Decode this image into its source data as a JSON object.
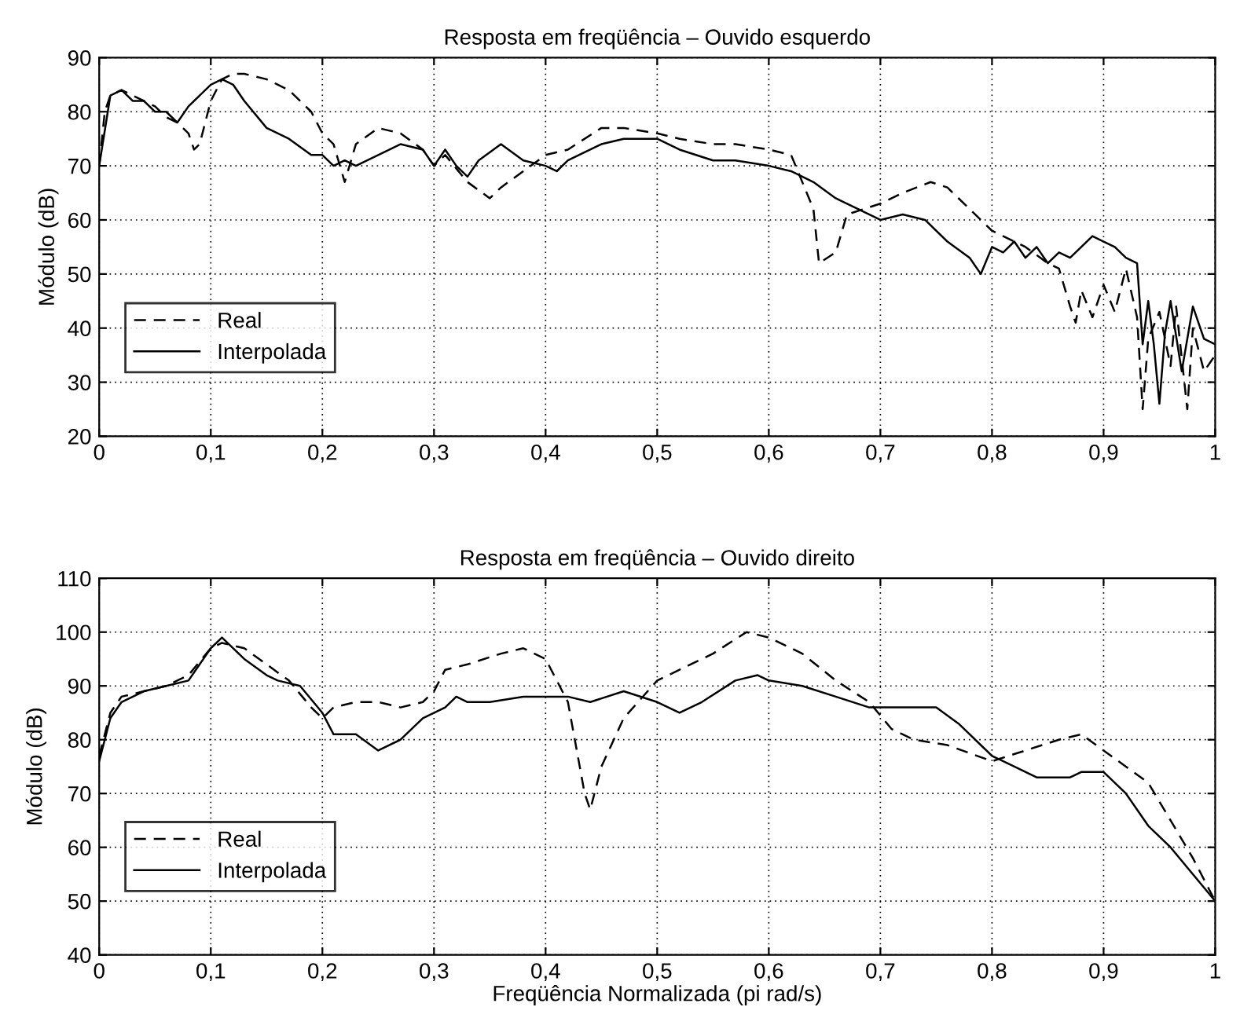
{
  "chart_data": [
    {
      "type": "line",
      "title": "Resposta em freqüência – Ouvido esquerdo",
      "ylabel": "Módulo (dB)",
      "xlim": [
        0,
        1
      ],
      "xticks": [
        0,
        {
          "value": 0.1,
          "label": "0,1"
        },
        {
          "value": 0.2,
          "label": "0,2"
        },
        {
          "value": 0.3,
          "label": "0,3"
        },
        {
          "value": 0.4,
          "label": "0,4"
        },
        {
          "value": 0.5,
          "label": "0,5"
        },
        {
          "value": 0.6,
          "label": "0,6"
        },
        {
          "value": 0.7,
          "label": "0,7"
        },
        {
          "value": 0.8,
          "label": "0,8"
        },
        {
          "value": 0.9,
          "label": "0,9"
        },
        1
      ],
      "ylim": [
        20,
        90
      ],
      "yticks": [
        20,
        30,
        40,
        50,
        60,
        70,
        80,
        90
      ],
      "grid": true,
      "legend": "bottom left",
      "series": [
        {
          "name": "Real",
          "color": "#000000",
          "line_style": "dashed",
          "x": [
            0,
            0.005,
            0.01,
            0.02,
            0.03,
            0.04,
            0.05,
            0.06,
            0.07,
            0.08,
            0.085,
            0.09,
            0.1,
            0.11,
            0.12,
            0.13,
            0.15,
            0.17,
            0.19,
            0.2,
            0.21,
            0.22,
            0.23,
            0.25,
            0.27,
            0.29,
            0.3,
            0.31,
            0.33,
            0.35,
            0.36,
            0.38,
            0.4,
            0.42,
            0.45,
            0.47,
            0.5,
            0.52,
            0.55,
            0.57,
            0.6,
            0.62,
            0.64,
            0.645,
            0.66,
            0.67,
            0.7,
            0.72,
            0.745,
            0.76,
            0.78,
            0.8,
            0.81,
            0.83,
            0.85,
            0.86,
            0.87,
            0.875,
            0.88,
            0.89,
            0.9,
            0.91,
            0.92,
            0.93,
            0.935,
            0.94,
            0.95,
            0.96,
            0.965,
            0.975,
            0.98,
            0.99,
            1.0
          ],
          "values": [
            70,
            80,
            83,
            84,
            83,
            82,
            81,
            79,
            78,
            76,
            73,
            74,
            82,
            86,
            87,
            87,
            86,
            84,
            80,
            76,
            74,
            67,
            74,
            77,
            76,
            73,
            70,
            72,
            67,
            64,
            66,
            69,
            72,
            73,
            77,
            77,
            76,
            75,
            74,
            74,
            73,
            72,
            62,
            52,
            54,
            61,
            63,
            65,
            67,
            66,
            62,
            58,
            57,
            55,
            52,
            51,
            44,
            41,
            47,
            42,
            48,
            43,
            51,
            42,
            25,
            38,
            43,
            33,
            44,
            25,
            40,
            32,
            35
          ]
        },
        {
          "name": "Interpolada",
          "color": "#000000",
          "line_style": "solid",
          "x": [
            0,
            0.01,
            0.02,
            0.03,
            0.04,
            0.05,
            0.06,
            0.07,
            0.08,
            0.1,
            0.11,
            0.12,
            0.13,
            0.15,
            0.17,
            0.19,
            0.2,
            0.21,
            0.22,
            0.23,
            0.25,
            0.27,
            0.29,
            0.3,
            0.31,
            0.32,
            0.33,
            0.34,
            0.36,
            0.38,
            0.4,
            0.41,
            0.42,
            0.45,
            0.47,
            0.5,
            0.52,
            0.55,
            0.57,
            0.6,
            0.62,
            0.64,
            0.66,
            0.68,
            0.7,
            0.72,
            0.74,
            0.76,
            0.78,
            0.79,
            0.8,
            0.81,
            0.82,
            0.83,
            0.84,
            0.85,
            0.86,
            0.87,
            0.88,
            0.89,
            0.9,
            0.91,
            0.92,
            0.93,
            0.935,
            0.94,
            0.945,
            0.95,
            0.955,
            0.96,
            0.97,
            0.98,
            0.99,
            1.0
          ],
          "values": [
            70,
            83,
            84,
            82,
            82,
            80,
            80,
            78,
            81,
            85,
            86,
            85,
            82,
            77,
            75,
            72,
            72,
            70,
            71,
            70,
            72,
            74,
            73,
            70,
            73,
            70,
            68,
            71,
            74,
            71,
            70,
            69,
            71,
            74,
            75,
            75,
            73,
            71,
            71,
            70,
            69,
            67,
            64,
            62,
            60,
            61,
            60,
            56,
            53,
            50,
            55,
            54,
            56,
            53,
            55,
            52,
            54,
            53,
            55,
            57,
            56,
            55,
            53,
            52,
            37,
            45,
            37,
            26,
            39,
            45,
            32,
            44,
            38,
            37
          ]
        }
      ]
    },
    {
      "type": "line",
      "title": "Resposta em freqüência – Ouvido direito",
      "ylabel": "Módulo (dB)",
      "xlabel": "Freqüência Normalizada (pi rad/s)",
      "xlim": [
        0,
        1
      ],
      "xticks": [
        0,
        {
          "value": 0.1,
          "label": "0,1"
        },
        {
          "value": 0.2,
          "label": "0,2"
        },
        {
          "value": 0.3,
          "label": "0,3"
        },
        {
          "value": 0.4,
          "label": "0,4"
        },
        {
          "value": 0.5,
          "label": "0,5"
        },
        {
          "value": 0.6,
          "label": "0,6"
        },
        {
          "value": 0.7,
          "label": "0,7"
        },
        {
          "value": 0.8,
          "label": "0,8"
        },
        {
          "value": 0.9,
          "label": "0,9"
        },
        1
      ],
      "ylim": [
        40,
        110
      ],
      "yticks": [
        40,
        50,
        60,
        70,
        80,
        90,
        100,
        110
      ],
      "grid": true,
      "legend": "bottom left",
      "series": [
        {
          "name": "Real",
          "color": "#000000",
          "line_style": "dashed",
          "x": [
            0,
            0.01,
            0.02,
            0.04,
            0.06,
            0.08,
            0.1,
            0.11,
            0.13,
            0.15,
            0.17,
            0.19,
            0.2,
            0.21,
            0.23,
            0.25,
            0.27,
            0.29,
            0.3,
            0.31,
            0.33,
            0.36,
            0.38,
            0.4,
            0.42,
            0.435,
            0.44,
            0.45,
            0.47,
            0.5,
            0.52,
            0.55,
            0.58,
            0.6,
            0.63,
            0.66,
            0.69,
            0.71,
            0.73,
            0.76,
            0.8,
            0.83,
            0.86,
            0.88,
            0.9,
            0.92,
            0.94,
            0.96,
            0.98,
            1.0
          ],
          "values": [
            77,
            85,
            88,
            89,
            90,
            92,
            97,
            98,
            97,
            94,
            91,
            86,
            84,
            86,
            87,
            87,
            86,
            87,
            89,
            93,
            94,
            96,
            97,
            95,
            87,
            70,
            67,
            75,
            84,
            91,
            93,
            96,
            100,
            99,
            96,
            91,
            87,
            82,
            80,
            79,
            76,
            78,
            80,
            81,
            78,
            75,
            72,
            65,
            58,
            50
          ]
        },
        {
          "name": "Interpolada",
          "color": "#000000",
          "line_style": "solid",
          "x": [
            0,
            0.01,
            0.02,
            0.04,
            0.06,
            0.08,
            0.1,
            0.11,
            0.13,
            0.15,
            0.16,
            0.18,
            0.2,
            0.21,
            0.23,
            0.25,
            0.27,
            0.29,
            0.31,
            0.32,
            0.33,
            0.35,
            0.38,
            0.4,
            0.42,
            0.44,
            0.47,
            0.5,
            0.52,
            0.54,
            0.57,
            0.59,
            0.6,
            0.63,
            0.66,
            0.69,
            0.72,
            0.75,
            0.77,
            0.8,
            0.82,
            0.84,
            0.87,
            0.88,
            0.9,
            0.92,
            0.94,
            0.96,
            0.98,
            1.0
          ],
          "values": [
            76,
            84,
            87,
            89,
            90,
            91,
            97,
            99,
            95,
            92,
            91,
            90,
            85,
            81,
            81,
            78,
            80,
            84,
            86,
            88,
            87,
            87,
            88,
            88,
            88,
            87,
            89,
            87,
            85,
            87,
            91,
            92,
            91,
            90,
            88,
            86,
            86,
            86,
            83,
            77,
            75,
            73,
            73,
            74,
            74,
            70,
            64,
            60,
            55,
            50
          ]
        }
      ]
    }
  ]
}
